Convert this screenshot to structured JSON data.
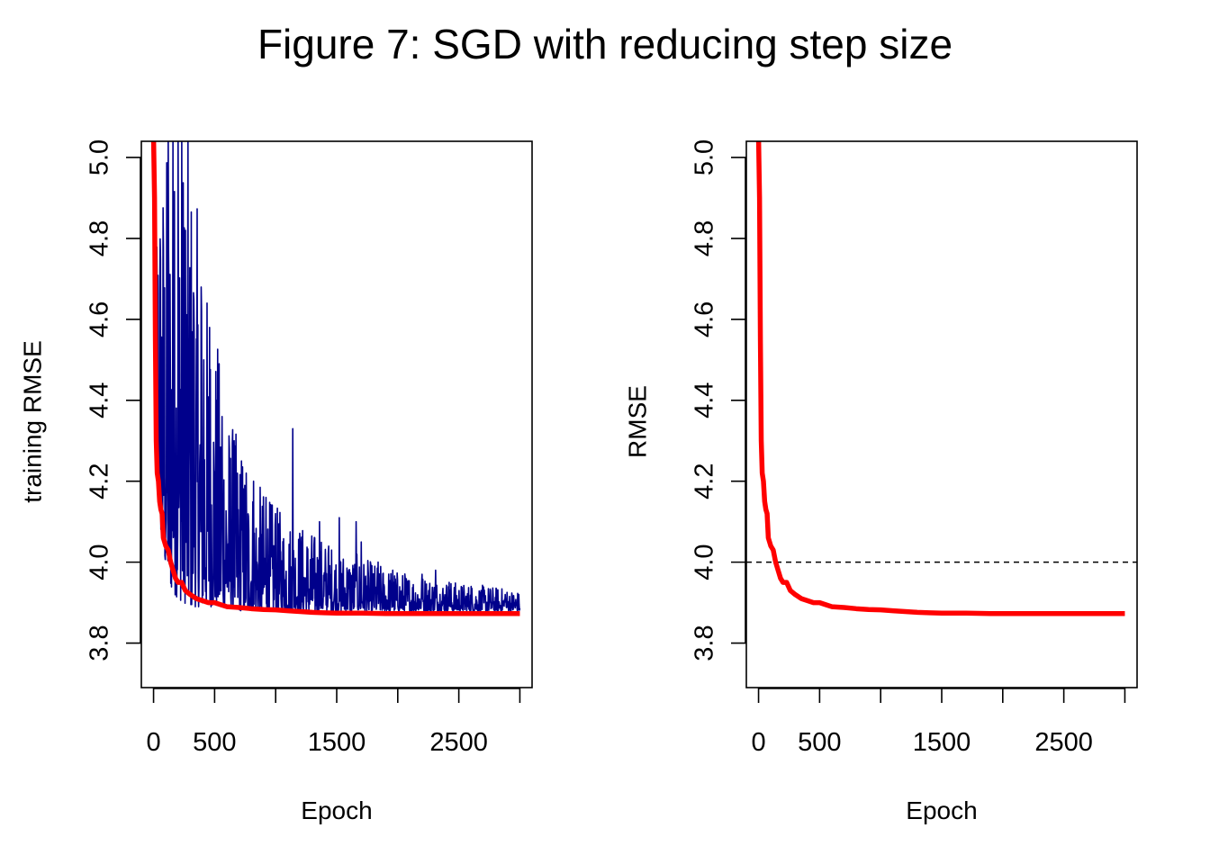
{
  "title": "Figure 7: SGD with reducing step size",
  "chart_data": [
    {
      "type": "line",
      "xlabel": "Epoch",
      "ylabel": "training RMSE",
      "xlim": [
        -100,
        3100
      ],
      "ylim": [
        3.69,
        5.04
      ],
      "x_ticks": [
        0,
        500,
        1000,
        1500,
        2000,
        2500,
        3000
      ],
      "x_tick_labels": [
        "0",
        "500",
        "",
        "1500",
        "",
        "2500",
        ""
      ],
      "y_ticks": [
        3.8,
        4.0,
        4.2,
        4.4,
        4.6,
        4.8,
        5.0
      ],
      "y_tick_labels": [
        "3.8",
        "4.0",
        "4.2",
        "4.4",
        "4.6",
        "4.8",
        "5.0"
      ],
      "series": [
        {
          "color": "#00008B",
          "style": "noisy-line",
          "x": [
            0,
            20,
            50,
            80,
            100,
            150,
            200,
            250,
            300,
            400,
            500,
            600,
            700,
            800,
            900,
            1000,
            1100,
            1200,
            1400,
            1600,
            1800,
            2000,
            2200,
            2500,
            2800,
            3000
          ],
          "upper": [
            5.05,
            5.05,
            5.05,
            5.05,
            5.05,
            5.05,
            5.05,
            5.05,
            5.05,
            4.75,
            4.6,
            4.4,
            4.3,
            4.22,
            4.18,
            4.14,
            4.12,
            4.1,
            4.06,
            4.03,
            4.0,
            3.98,
            3.97,
            3.95,
            3.94,
            3.93
          ],
          "lower": [
            4.6,
            4.3,
            4.1,
            4.02,
            3.98,
            3.93,
            3.91,
            3.9,
            3.89,
            3.89,
            3.89,
            3.89,
            3.88,
            3.88,
            3.88,
            3.88,
            3.88,
            3.88,
            3.88,
            3.88,
            3.88,
            3.88,
            3.88,
            3.88,
            3.88,
            3.88
          ],
          "spikes": [
            [
              120,
              5.05
            ],
            [
              160,
              5.05
            ],
            [
              200,
              5.05
            ],
            [
              230,
              5.05
            ],
            [
              260,
              4.82
            ],
            [
              300,
              4.7
            ],
            [
              330,
              4.65
            ],
            [
              390,
              4.68
            ],
            [
              410,
              4.5
            ],
            [
              460,
              4.58
            ],
            [
              520,
              4.4
            ],
            [
              560,
              4.36
            ],
            [
              620,
              4.28
            ],
            [
              660,
              4.3
            ],
            [
              720,
              4.25
            ],
            [
              760,
              4.22
            ],
            [
              820,
              4.2
            ],
            [
              920,
              4.16
            ],
            [
              1000,
              4.12
            ],
            [
              1140,
              4.33
            ],
            [
              1200,
              4.05
            ],
            [
              1360,
              4.1
            ],
            [
              1430,
              4.02
            ],
            [
              1520,
              4.11
            ],
            [
              1660,
              4.1
            ],
            [
              1700,
              4.05
            ],
            [
              1840,
              4.0
            ],
            [
              1960,
              3.98
            ],
            [
              2060,
              3.96
            ],
            [
              2200,
              3.97
            ],
            [
              2310,
              3.98
            ],
            [
              2420,
              3.95
            ],
            [
              2600,
              3.94
            ],
            [
              2760,
              3.93
            ],
            [
              2880,
              3.92
            ],
            [
              2990,
              3.92
            ]
          ]
        },
        {
          "color": "#FF0000",
          "style": "thick",
          "x": [
            0,
            8,
            15,
            22,
            30,
            40,
            50,
            60,
            70,
            80,
            90,
            100,
            120,
            140,
            160,
            180,
            200,
            230,
            260,
            300,
            350,
            400,
            450,
            500,
            550,
            600,
            700,
            800,
            900,
            1000,
            1100,
            1200,
            1300,
            1400,
            1500,
            1700,
            1900,
            2100,
            2300,
            2500,
            2700,
            3000
          ],
          "y": [
            5.05,
            4.9,
            4.55,
            4.3,
            4.22,
            4.2,
            4.15,
            4.13,
            4.12,
            4.06,
            4.05,
            4.04,
            4.03,
            4.0,
            3.98,
            3.96,
            3.95,
            3.95,
            3.93,
            3.92,
            3.91,
            3.905,
            3.9,
            3.9,
            3.895,
            3.89,
            3.888,
            3.885,
            3.883,
            3.882,
            3.88,
            3.878,
            3.876,
            3.875,
            3.874,
            3.874,
            3.873,
            3.873,
            3.873,
            3.873,
            3.873,
            3.873
          ]
        }
      ]
    },
    {
      "type": "line",
      "xlabel": "Epoch",
      "ylabel": "RMSE",
      "xlim": [
        -100,
        3100
      ],
      "ylim": [
        3.69,
        5.04
      ],
      "x_ticks": [
        0,
        500,
        1000,
        1500,
        2000,
        2500,
        3000
      ],
      "x_tick_labels": [
        "0",
        "500",
        "",
        "1500",
        "",
        "2500",
        ""
      ],
      "y_ticks": [
        3.8,
        4.0,
        4.2,
        4.4,
        4.6,
        4.8,
        5.0
      ],
      "y_tick_labels": [
        "3.8",
        "4.0",
        "4.2",
        "4.4",
        "4.6",
        "4.8",
        "5.0"
      ],
      "hline": {
        "y": 4.0,
        "style": "dashed",
        "color": "#000000"
      },
      "series": [
        {
          "color": "#FF0000",
          "style": "thick",
          "x": [
            0,
            8,
            15,
            22,
            30,
            40,
            50,
            60,
            70,
            80,
            90,
            100,
            120,
            140,
            160,
            180,
            200,
            230,
            260,
            300,
            350,
            400,
            450,
            500,
            550,
            600,
            700,
            800,
            900,
            1000,
            1100,
            1200,
            1300,
            1400,
            1500,
            1700,
            1900,
            2100,
            2300,
            2500,
            2700,
            3000
          ],
          "y": [
            5.05,
            4.9,
            4.55,
            4.3,
            4.22,
            4.2,
            4.15,
            4.13,
            4.12,
            4.06,
            4.05,
            4.04,
            4.03,
            4.0,
            3.98,
            3.96,
            3.95,
            3.95,
            3.93,
            3.92,
            3.91,
            3.905,
            3.9,
            3.9,
            3.895,
            3.89,
            3.888,
            3.885,
            3.883,
            3.882,
            3.88,
            3.878,
            3.876,
            3.875,
            3.874,
            3.874,
            3.873,
            3.873,
            3.873,
            3.873,
            3.873,
            3.873
          ]
        }
      ]
    }
  ]
}
